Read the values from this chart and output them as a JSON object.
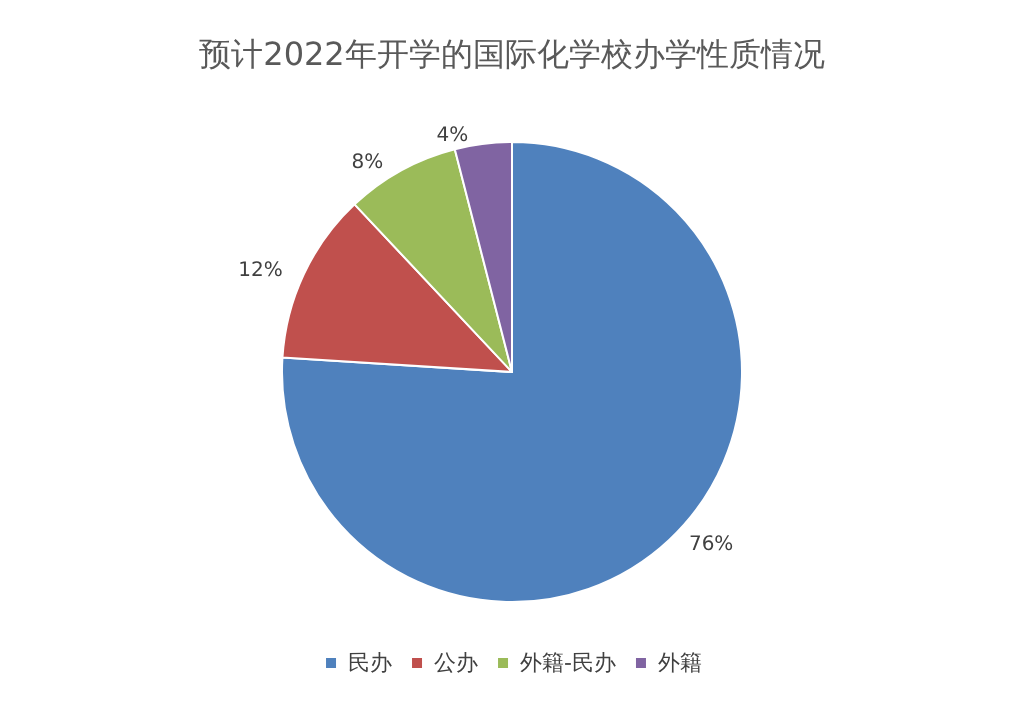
{
  "chart_data": {
    "type": "pie",
    "title": "预计2022年开学的国际化学校办学性质情况",
    "categories": [
      "民办",
      "公办",
      "外籍-民办",
      "外籍"
    ],
    "values": [
      76,
      12,
      8,
      4
    ],
    "colors": [
      "#4f81bd",
      "#c0504d",
      "#9bbb59",
      "#8064a2"
    ],
    "value_labels": [
      "76%",
      "12%",
      "8%",
      "4%"
    ],
    "legend": "bottom"
  }
}
